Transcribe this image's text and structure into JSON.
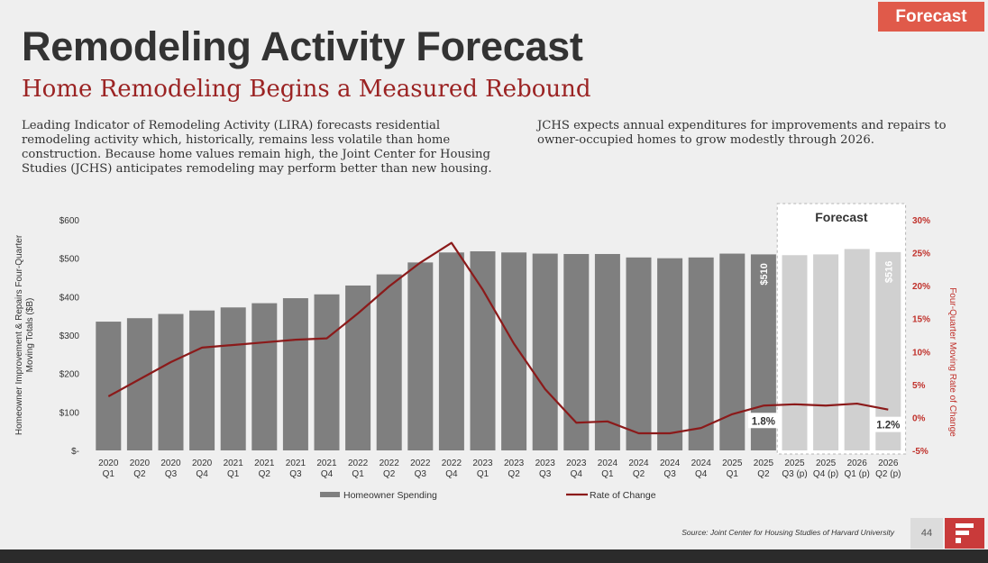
{
  "badge": "Forecast",
  "title": "Remodeling Activity Forecast",
  "subtitle": "Home Remodeling Begins a Measured Rebound",
  "paragraph_left": "Leading Indicator of Remodeling Activity (LIRA) forecasts residential remodeling activity which, historically, remains less volatile than home construction. Because home values remain high, the Joint Center for Housing Studies (JCHS) anticipates remodeling may perform better than new housing.",
  "paragraph_right": "JCHS expects annual expenditures for improvements and repairs to owner-occupied homes to grow modestly through 2026.",
  "source": "Source: Joint Center for Housing Studies of Harvard University",
  "page_number": "44",
  "colors": {
    "badge": "#e05a4a",
    "subtitle": "#9b2323",
    "bar_actual": "#7f7f7f",
    "bar_forecast": "#d0d0d0",
    "line": "#8b1a1a",
    "right_axis": "#c0312b"
  },
  "chart_data": {
    "type": "bar",
    "categories": [
      [
        "2020",
        "Q1"
      ],
      [
        "2020",
        "Q2"
      ],
      [
        "2020",
        "Q3"
      ],
      [
        "2020",
        "Q4"
      ],
      [
        "2021",
        "Q1"
      ],
      [
        "2021",
        "Q2"
      ],
      [
        "2021",
        "Q3"
      ],
      [
        "2021",
        "Q4"
      ],
      [
        "2022",
        "Q1"
      ],
      [
        "2022",
        "Q2"
      ],
      [
        "2022",
        "Q3"
      ],
      [
        "2022",
        "Q4"
      ],
      [
        "2023",
        "Q1"
      ],
      [
        "2023",
        "Q2"
      ],
      [
        "2023",
        "Q3"
      ],
      [
        "2023",
        "Q4"
      ],
      [
        "2024",
        "Q1"
      ],
      [
        "2024",
        "Q2"
      ],
      [
        "2024",
        "Q3"
      ],
      [
        "2024",
        "Q4"
      ],
      [
        "2025",
        "Q1"
      ],
      [
        "2025",
        "Q2"
      ],
      [
        "2025",
        "Q3 (p)"
      ],
      [
        "2025",
        "Q4 (p)"
      ],
      [
        "2026",
        "Q1 (p)"
      ],
      [
        "2026",
        "Q2 (p)"
      ]
    ],
    "forecast_start_index": 22,
    "series": [
      {
        "name": "Homeowner Spending",
        "type": "bar",
        "axis": "left",
        "values": [
          335,
          344,
          355,
          364,
          372,
          383,
          396,
          406,
          429,
          458,
          489,
          515,
          518,
          515,
          512,
          511,
          511,
          502,
          500,
          502,
          512,
          510,
          508,
          510,
          524,
          516
        ]
      },
      {
        "name": "Rate of Change",
        "type": "line",
        "axis": "right",
        "values": [
          3.2,
          5.8,
          8.4,
          10.6,
          11.0,
          11.4,
          11.8,
          12.0,
          15.8,
          19.9,
          23.5,
          26.5,
          19.4,
          11.2,
          4.3,
          -0.8,
          -0.6,
          -2.4,
          -2.4,
          -1.6,
          0.5,
          1.8,
          2.0,
          1.8,
          2.1,
          1.2
        ]
      }
    ],
    "left_axis": {
      "label": "Homeowner Improvement & Repairs Four-Quarter Moving Totals ($B)",
      "ticks": [
        "$-",
        "$100",
        "$200",
        "$300",
        "$400",
        "$500",
        "$600"
      ],
      "ylim": [
        0,
        600
      ]
    },
    "right_axis": {
      "label": "Four-Quarter Moving Rate of Change",
      "ticks": [
        "-5%",
        "0%",
        "5%",
        "10%",
        "15%",
        "20%",
        "25%",
        "30%"
      ],
      "ylim": [
        -5,
        30
      ]
    },
    "forecast_label": "Forecast",
    "bar_labels": [
      {
        "index": 21,
        "text": "$510"
      },
      {
        "index": 25,
        "text": "$516"
      }
    ],
    "line_labels": [
      {
        "index": 21,
        "text": "1.8%"
      },
      {
        "index": 25,
        "text": "1.2%"
      }
    ],
    "legend": [
      "Homeowner Spending",
      "Rate of Change"
    ]
  }
}
